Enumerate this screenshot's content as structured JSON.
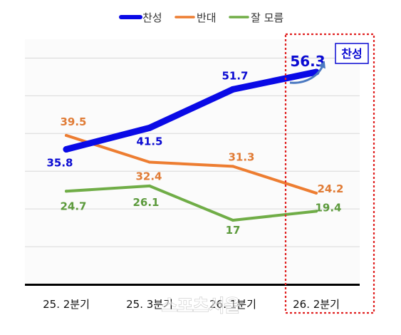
{
  "chart_data": {
    "type": "line",
    "title": "",
    "xlabel": "",
    "ylabel": "",
    "ylim": [
      0,
      65
    ],
    "grid": true,
    "legend_position": "top-center",
    "categories": [
      "25. 2분기",
      "25. 3분기",
      "26. 1분기",
      "26. 2분기"
    ],
    "series": [
      {
        "name": "찬성",
        "color": "#0a0ae6",
        "values": [
          35.8,
          41.5,
          51.7,
          56.3
        ],
        "labels": [
          "35.8",
          "41.5",
          "51.7",
          "56.3"
        ]
      },
      {
        "name": "반대",
        "color": "#ed7d31",
        "values": [
          39.5,
          32.4,
          31.3,
          24.2
        ],
        "labels": [
          "39.5",
          "32.4",
          "31.3",
          "24.2"
        ]
      },
      {
        "name": "잘 모름",
        "color": "#70ad47",
        "values": [
          24.7,
          26.1,
          17,
          19.4
        ],
        "labels": [
          "24.7",
          "26.1",
          "17",
          "19.4"
        ]
      }
    ],
    "highlight": {
      "category": "26. 2분기",
      "badge": "찬성",
      "box_color": "#e02020"
    }
  },
  "watermark": "스포츠서울"
}
